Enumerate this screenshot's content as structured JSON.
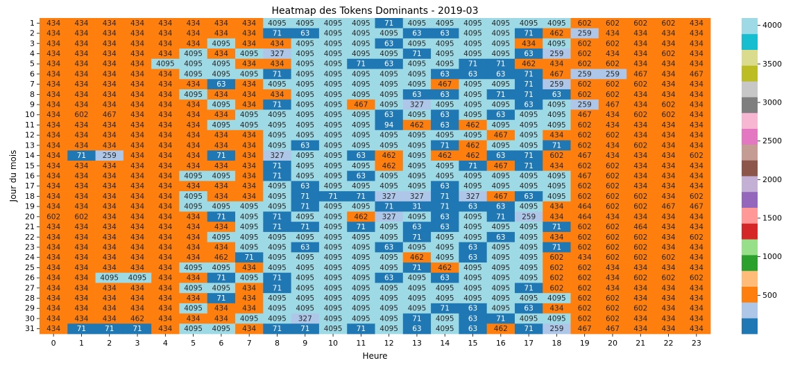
{
  "chart_data": {
    "type": "heatmap",
    "title": "Heatmap des Tokens Dominants - 2019-03",
    "xlabel": "Heure",
    "ylabel": "Jour du mois",
    "x": [
      0,
      1,
      2,
      3,
      4,
      5,
      6,
      7,
      8,
      9,
      10,
      11,
      12,
      13,
      14,
      15,
      16,
      17,
      18,
      19,
      20,
      21,
      22,
      23
    ],
    "y": [
      1,
      2,
      3,
      4,
      5,
      6,
      7,
      8,
      9,
      10,
      11,
      12,
      13,
      14,
      15,
      16,
      17,
      18,
      19,
      20,
      21,
      22,
      23,
      24,
      25,
      26,
      27,
      28,
      29,
      30,
      31
    ],
    "values": [
      [
        434,
        434,
        434,
        434,
        434,
        434,
        434,
        434,
        4095,
        4095,
        4095,
        4095,
        71,
        4095,
        4095,
        4095,
        4095,
        4095,
        4095,
        602,
        602,
        602,
        602,
        434
      ],
      [
        434,
        434,
        434,
        434,
        434,
        434,
        434,
        434,
        71,
        63,
        4095,
        4095,
        4095,
        63,
        63,
        4095,
        4095,
        71,
        462,
        259,
        434,
        434,
        434,
        434
      ],
      [
        434,
        434,
        434,
        434,
        434,
        434,
        4095,
        434,
        434,
        4095,
        4095,
        4095,
        63,
        4095,
        4095,
        4095,
        4095,
        434,
        4095,
        602,
        602,
        434,
        434,
        434
      ],
      [
        434,
        434,
        434,
        434,
        434,
        4095,
        434,
        4095,
        327,
        4095,
        4095,
        4095,
        4095,
        71,
        4095,
        4095,
        4095,
        63,
        259,
        602,
        434,
        434,
        602,
        434
      ],
      [
        434,
        434,
        434,
        434,
        4095,
        4095,
        4095,
        434,
        434,
        4095,
        4095,
        71,
        63,
        4095,
        4095,
        71,
        71,
        462,
        434,
        602,
        602,
        434,
        434,
        434
      ],
      [
        434,
        434,
        434,
        434,
        434,
        4095,
        4095,
        4095,
        71,
        4095,
        4095,
        4095,
        4095,
        4095,
        63,
        63,
        63,
        71,
        467,
        259,
        259,
        467,
        434,
        467
      ],
      [
        434,
        434,
        434,
        434,
        434,
        434,
        63,
        434,
        4095,
        4095,
        4095,
        4095,
        4095,
        4095,
        467,
        4095,
        4095,
        71,
        259,
        602,
        602,
        602,
        434,
        434
      ],
      [
        434,
        434,
        434,
        434,
        434,
        4095,
        434,
        434,
        434,
        4095,
        4095,
        4095,
        4095,
        63,
        63,
        4095,
        71,
        71,
        63,
        602,
        602,
        434,
        434,
        434
      ],
      [
        434,
        434,
        434,
        434,
        434,
        434,
        4095,
        434,
        71,
        4095,
        4095,
        467,
        4095,
        327,
        4095,
        4095,
        4095,
        63,
        4095,
        259,
        467,
        434,
        602,
        434
      ],
      [
        434,
        602,
        467,
        434,
        434,
        434,
        434,
        4095,
        4095,
        4095,
        4095,
        4095,
        63,
        4095,
        63,
        4095,
        63,
        4095,
        4095,
        467,
        434,
        602,
        602,
        434
      ],
      [
        434,
        434,
        434,
        434,
        434,
        434,
        4095,
        4095,
        4095,
        4095,
        4095,
        4095,
        94,
        462,
        63,
        462,
        4095,
        4095,
        4095,
        602,
        434,
        434,
        434,
        434
      ],
      [
        434,
        434,
        434,
        434,
        434,
        434,
        434,
        434,
        4095,
        4095,
        4095,
        4095,
        4095,
        4095,
        4095,
        4095,
        467,
        4095,
        434,
        602,
        602,
        434,
        434,
        434
      ],
      [
        434,
        434,
        434,
        434,
        434,
        434,
        434,
        434,
        4095,
        63,
        4095,
        4095,
        4095,
        4095,
        71,
        462,
        4095,
        4095,
        71,
        602,
        434,
        602,
        434,
        434
      ],
      [
        434,
        71,
        259,
        434,
        434,
        434,
        71,
        434,
        327,
        4095,
        4095,
        63,
        462,
        4095,
        462,
        462,
        63,
        71,
        602,
        467,
        434,
        434,
        434,
        602
      ],
      [
        434,
        434,
        434,
        434,
        434,
        434,
        434,
        434,
        71,
        4095,
        4095,
        4095,
        462,
        4095,
        4095,
        71,
        467,
        71,
        434,
        602,
        602,
        434,
        434,
        434
      ],
      [
        434,
        434,
        434,
        434,
        434,
        4095,
        4095,
        434,
        71,
        4095,
        4095,
        63,
        4095,
        4095,
        4095,
        4095,
        4095,
        4095,
        4095,
        467,
        602,
        434,
        434,
        434
      ],
      [
        434,
        434,
        434,
        434,
        434,
        434,
        434,
        434,
        4095,
        63,
        4095,
        4095,
        4095,
        4095,
        63,
        4095,
        4095,
        4095,
        4095,
        602,
        602,
        434,
        434,
        434
      ],
      [
        434,
        434,
        434,
        434,
        434,
        4095,
        434,
        434,
        4095,
        71,
        71,
        71,
        327,
        327,
        71,
        327,
        467,
        63,
        4095,
        602,
        602,
        602,
        434,
        602
      ],
      [
        434,
        434,
        434,
        434,
        434,
        4095,
        4095,
        4095,
        4095,
        71,
        4095,
        4095,
        71,
        31,
        71,
        63,
        63,
        4095,
        434,
        464,
        602,
        602,
        467,
        467
      ],
      [
        602,
        602,
        434,
        434,
        434,
        434,
        71,
        4095,
        71,
        4095,
        4095,
        462,
        327,
        4095,
        63,
        4095,
        71,
        259,
        434,
        464,
        434,
        434,
        434,
        434
      ],
      [
        434,
        434,
        434,
        434,
        434,
        434,
        434,
        4095,
        71,
        71,
        4095,
        71,
        4095,
        63,
        63,
        4095,
        4095,
        4095,
        71,
        602,
        602,
        464,
        434,
        434
      ],
      [
        434,
        434,
        434,
        434,
        434,
        434,
        4095,
        4095,
        4095,
        4095,
        4095,
        4095,
        4095,
        71,
        4095,
        4095,
        63,
        4095,
        434,
        602,
        602,
        602,
        434,
        602
      ],
      [
        434,
        434,
        434,
        434,
        434,
        434,
        434,
        4095,
        4095,
        63,
        4095,
        4095,
        63,
        4095,
        4095,
        63,
        4095,
        4095,
        71,
        602,
        602,
        602,
        434,
        434
      ],
      [
        434,
        434,
        434,
        434,
        434,
        434,
        462,
        71,
        4095,
        4095,
        4095,
        4095,
        4095,
        462,
        4095,
        63,
        4095,
        4095,
        602,
        434,
        602,
        602,
        602,
        434
      ],
      [
        434,
        434,
        434,
        434,
        434,
        4095,
        4095,
        434,
        4095,
        4095,
        4095,
        4095,
        4095,
        71,
        462,
        4095,
        4095,
        4095,
        602,
        602,
        434,
        434,
        434,
        434
      ],
      [
        434,
        434,
        4095,
        4095,
        434,
        434,
        71,
        4095,
        71,
        4095,
        4095,
        4095,
        63,
        4095,
        63,
        4095,
        4095,
        4095,
        602,
        602,
        434,
        602,
        602,
        602
      ],
      [
        434,
        434,
        434,
        434,
        434,
        4095,
        4095,
        434,
        71,
        4095,
        4095,
        4095,
        4095,
        4095,
        4095,
        4095,
        4095,
        71,
        602,
        602,
        434,
        434,
        434,
        434
      ],
      [
        434,
        434,
        434,
        434,
        434,
        434,
        71,
        434,
        4095,
        4095,
        4095,
        4095,
        4095,
        4095,
        4095,
        4095,
        4095,
        4095,
        4095,
        602,
        602,
        434,
        434,
        434
      ],
      [
        434,
        434,
        434,
        434,
        434,
        4095,
        434,
        434,
        4095,
        4095,
        4095,
        4095,
        4095,
        4095,
        71,
        63,
        4095,
        63,
        434,
        602,
        602,
        602,
        434,
        434
      ],
      [
        434,
        434,
        434,
        462,
        434,
        434,
        434,
        4095,
        4095,
        327,
        4095,
        4095,
        4095,
        71,
        4095,
        63,
        71,
        4095,
        4095,
        602,
        602,
        434,
        434,
        434
      ],
      [
        434,
        71,
        71,
        71,
        434,
        4095,
        4095,
        434,
        71,
        71,
        4095,
        71,
        4095,
        63,
        4095,
        63,
        462,
        71,
        259,
        467,
        467,
        434,
        434,
        434
      ]
    ],
    "colorbar": {
      "range": [
        0,
        4095
      ],
      "ticks": [
        500,
        1000,
        1500,
        2000,
        2500,
        3000,
        3500,
        4000
      ],
      "colormap": "tab20",
      "colors": [
        "#1f77b4",
        "#aec7e8",
        "#ff7f0e",
        "#ffbb78",
        "#2ca02c",
        "#98df8a",
        "#d62728",
        "#ff9896",
        "#9467bd",
        "#c5b0d5",
        "#8c564b",
        "#c49c94",
        "#e377c2",
        "#f7b6d2",
        "#7f7f7f",
        "#c7c7c7",
        "#bcbd22",
        "#dbdb8d",
        "#17becf",
        "#9edae5"
      ]
    }
  }
}
